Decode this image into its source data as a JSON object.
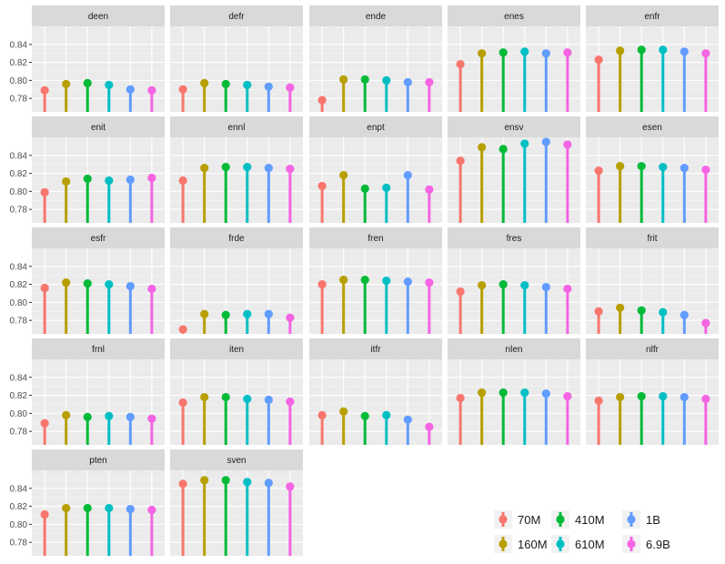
{
  "chart_data": {
    "type": "lollipop",
    "facet_layout": {
      "ncol": 5,
      "nrow": 5
    },
    "ylim": [
      0.765,
      0.86
    ],
    "yticks": [
      0.78,
      0.8,
      0.82,
      0.84
    ],
    "ytick_labels": [
      "0.78",
      "0.80",
      "0.82",
      "0.84"
    ],
    "grid": true,
    "legend_position": "bottom-right",
    "series": [
      {
        "name": "70M",
        "color": "#F8766D"
      },
      {
        "name": "160M",
        "color": "#B79F00"
      },
      {
        "name": "410M",
        "color": "#00BA38"
      },
      {
        "name": "610M",
        "color": "#00BFC4"
      },
      {
        "name": "1B",
        "color": "#619CFF"
      },
      {
        "name": "6.9B",
        "color": "#F564E3"
      }
    ],
    "panels": [
      {
        "label": "deen",
        "values": [
          0.789,
          0.796,
          0.797,
          0.795,
          0.79,
          0.789
        ]
      },
      {
        "label": "defr",
        "values": [
          0.79,
          0.797,
          0.796,
          0.795,
          0.793,
          0.792
        ]
      },
      {
        "label": "ende",
        "values": [
          0.778,
          0.801,
          0.801,
          0.8,
          0.798,
          0.798
        ]
      },
      {
        "label": "enes",
        "values": [
          0.818,
          0.83,
          0.831,
          0.832,
          0.83,
          0.831
        ]
      },
      {
        "label": "enfr",
        "values": [
          0.823,
          0.833,
          0.834,
          0.834,
          0.832,
          0.83
        ]
      },
      {
        "label": "enit",
        "values": [
          0.799,
          0.811,
          0.814,
          0.812,
          0.813,
          0.815
        ]
      },
      {
        "label": "ennl",
        "values": [
          0.812,
          0.826,
          0.827,
          0.827,
          0.826,
          0.825
        ]
      },
      {
        "label": "enpt",
        "values": [
          0.806,
          0.818,
          0.803,
          0.804,
          0.818,
          0.802
        ]
      },
      {
        "label": "ensv",
        "values": [
          0.834,
          0.849,
          0.847,
          0.853,
          0.855,
          0.852
        ]
      },
      {
        "label": "esen",
        "values": [
          0.823,
          0.828,
          0.828,
          0.827,
          0.826,
          0.824
        ]
      },
      {
        "label": "esfr",
        "values": [
          0.816,
          0.822,
          0.821,
          0.82,
          0.818,
          0.815
        ]
      },
      {
        "label": "frde",
        "values": [
          0.77,
          0.787,
          0.786,
          0.787,
          0.787,
          0.783
        ]
      },
      {
        "label": "fren",
        "values": [
          0.82,
          0.825,
          0.825,
          0.824,
          0.823,
          0.822
        ]
      },
      {
        "label": "fres",
        "values": [
          0.812,
          0.819,
          0.82,
          0.819,
          0.817,
          0.815
        ]
      },
      {
        "label": "frit",
        "values": [
          0.79,
          0.794,
          0.791,
          0.789,
          0.786,
          0.777
        ]
      },
      {
        "label": "frnl",
        "values": [
          0.789,
          0.798,
          0.796,
          0.797,
          0.796,
          0.794
        ]
      },
      {
        "label": "iten",
        "values": [
          0.812,
          0.818,
          0.818,
          0.816,
          0.815,
          0.813
        ]
      },
      {
        "label": "itfr",
        "values": [
          0.798,
          0.802,
          0.797,
          0.798,
          0.793,
          0.785
        ]
      },
      {
        "label": "nlen",
        "values": [
          0.817,
          0.823,
          0.823,
          0.823,
          0.822,
          0.819
        ]
      },
      {
        "label": "nlfr",
        "values": [
          0.814,
          0.818,
          0.819,
          0.819,
          0.818,
          0.816
        ]
      },
      {
        "label": "pten",
        "values": [
          0.811,
          0.818,
          0.818,
          0.818,
          0.817,
          0.816
        ]
      },
      {
        "label": "sven",
        "values": [
          0.845,
          0.849,
          0.849,
          0.847,
          0.846,
          0.842
        ]
      }
    ]
  }
}
